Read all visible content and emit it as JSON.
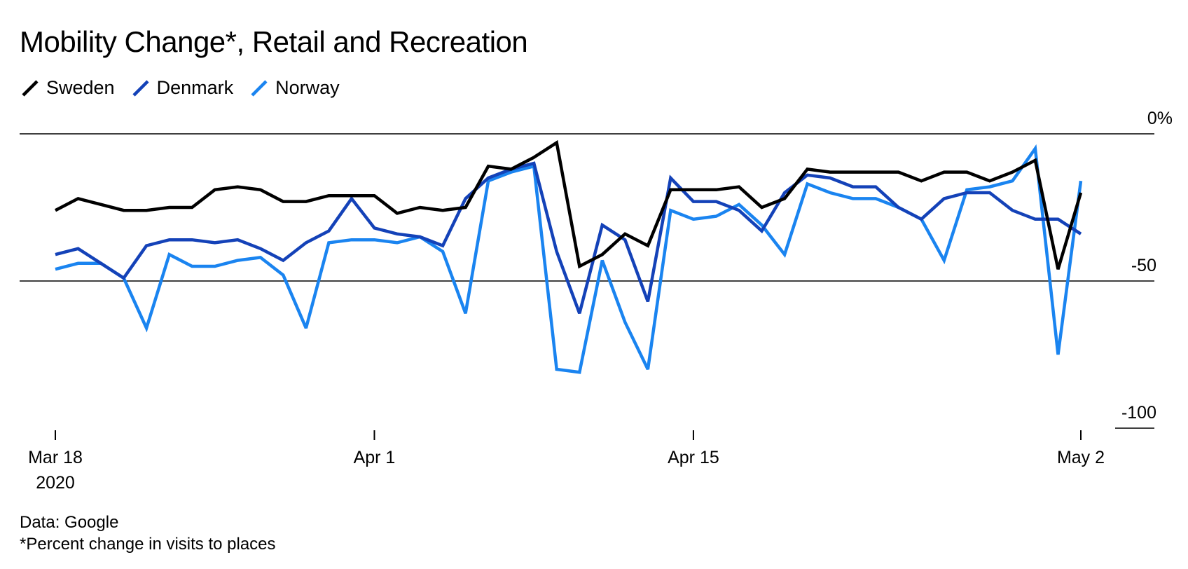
{
  "title": "Mobility Change*, Retail and Recreation",
  "footer": {
    "source": "Data: Google",
    "note": "*Percent change in visits to places"
  },
  "colors": {
    "sweden": "#000000",
    "denmark": "#1442b8",
    "norway": "#1a84f0",
    "axis": "#000000"
  },
  "chart_data": {
    "type": "line",
    "x_start": "2020-03-18",
    "x_end": "2020-05-02",
    "ylim": [
      -100,
      0
    ],
    "yticks": [
      {
        "value": 0,
        "label": "0%"
      },
      {
        "value": -50,
        "label": "-50"
      },
      {
        "value": -100,
        "label": "-100"
      }
    ],
    "xticks": [
      {
        "date": "2020-03-18",
        "label": "Mar 18",
        "sublabel": "2020"
      },
      {
        "date": "2020-04-01",
        "label": "Apr 1",
        "sublabel": ""
      },
      {
        "date": "2020-04-15",
        "label": "Apr 15",
        "sublabel": ""
      },
      {
        "date": "2020-05-02",
        "label": "May 2",
        "sublabel": ""
      }
    ],
    "legend_position": "top-left",
    "series": [
      {
        "name": "Sweden",
        "color": "#000000",
        "values": [
          -26,
          -22,
          -24,
          -26,
          -26,
          -25,
          -25,
          -19,
          -18,
          -19,
          -23,
          -23,
          -21,
          -21,
          -21,
          -27,
          -25,
          -26,
          -25,
          -11,
          -12,
          -8,
          -3,
          -45,
          -41,
          -34,
          -38,
          -19,
          -19,
          -19,
          -18,
          -25,
          -22,
          -12,
          -13,
          -13,
          -13,
          -13,
          -16,
          -13,
          -13,
          -16,
          -13,
          -9,
          -46,
          -20
        ]
      },
      {
        "name": "Denmark",
        "color": "#1442b8",
        "values": [
          -41,
          -39,
          -44,
          -49,
          -38,
          -36,
          -36,
          -37,
          -36,
          -39,
          -43,
          -37,
          -33,
          -22,
          -32,
          -34,
          -35,
          -38,
          -22,
          -15,
          -12,
          -10,
          -40,
          -61,
          -31,
          -36,
          -57,
          -15,
          -23,
          -23,
          -26,
          -33,
          -20,
          -14,
          -15,
          -18,
          -18,
          -25,
          -29,
          -22,
          -20,
          -20,
          -26,
          -29,
          -29,
          -34
        ]
      },
      {
        "name": "Norway",
        "color": "#1a84f0",
        "values": [
          -46,
          -44,
          -44,
          -49,
          -66,
          -41,
          -45,
          -45,
          -43,
          -42,
          -48,
          -66,
          -37,
          -36,
          -36,
          -37,
          -35,
          -40,
          -61,
          -16,
          -13,
          -11,
          -80,
          -81,
          -43,
          -64,
          -80,
          -26,
          -29,
          -28,
          -24,
          -31,
          -41,
          -17,
          -20,
          -22,
          -22,
          -25,
          -29,
          -43,
          -19,
          -18,
          -16,
          -5,
          -75,
          -16
        ]
      }
    ]
  }
}
